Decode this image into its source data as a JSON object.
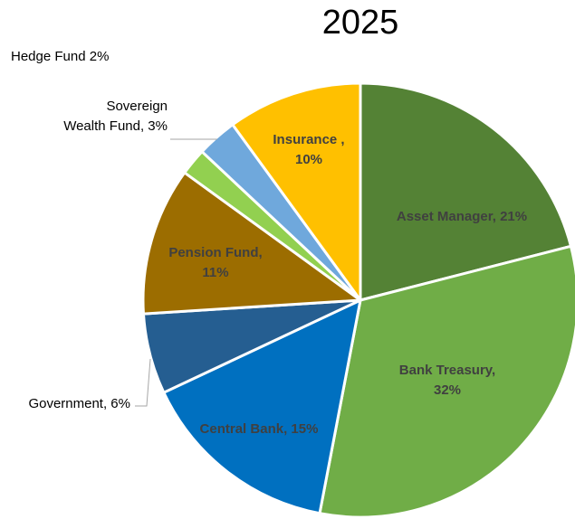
{
  "chart_data": {
    "type": "pie",
    "title": "2025",
    "slices": [
      {
        "name": "Asset Manager",
        "value": 21,
        "color": "#548235",
        "label_lines": [
          "Asset Manager, 21%"
        ]
      },
      {
        "name": "Bank Treasury",
        "value": 32,
        "color": "#70ad47",
        "label_lines": [
          "Bank Treasury,",
          "32%"
        ]
      },
      {
        "name": "Central Bank",
        "value": 15,
        "color": "#0070c0",
        "label_lines": [
          "Central Bank, 15%"
        ]
      },
      {
        "name": "Government",
        "value": 6,
        "color": "#255e91",
        "label_lines": [
          "Government, 6%"
        ]
      },
      {
        "name": "Pension Fund",
        "value": 11,
        "color": "#9c6d00",
        "label_lines": [
          "Pension Fund,",
          "11%"
        ]
      },
      {
        "name": "Hedge Fund",
        "value": 2,
        "color": "#92d050",
        "label_lines": [
          "Hedge Fund  2%"
        ]
      },
      {
        "name": "Sovereign Wealth Fund",
        "value": 3,
        "color": "#6fa8dc",
        "label_lines": [
          "Sovereign",
          "Wealth Fund, 3%"
        ]
      },
      {
        "name": "Insurance",
        "value": 10,
        "color": "#ffc000",
        "label_lines": [
          "Insurance ,",
          "10%"
        ]
      }
    ]
  }
}
